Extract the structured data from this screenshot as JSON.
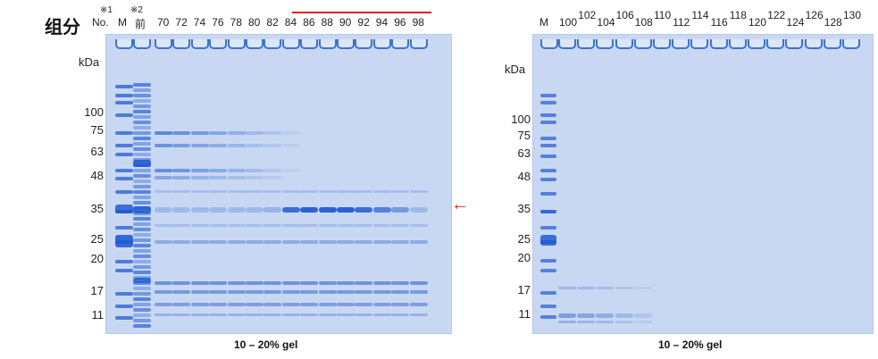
{
  "title": "组分",
  "notes": {
    "n1": "※1",
    "n2": "※2"
  },
  "left": {
    "no_label": "No.",
    "marker_label": "M",
    "pre_label": "前",
    "fractions": [
      "70",
      "72",
      "74",
      "76",
      "78",
      "80",
      "82",
      "84",
      "86",
      "88",
      "90",
      "92",
      "94",
      "96",
      "98"
    ],
    "kda_label": "kDa",
    "mw": [
      "100",
      "75",
      "63",
      "48",
      "35",
      "25",
      "20",
      "17",
      "11"
    ],
    "caption": "10 – 20% gel",
    "arrow": "←"
  },
  "right": {
    "marker_label": "M",
    "fractions": [
      "100",
      "102",
      "104",
      "106",
      "108",
      "110",
      "112",
      "114",
      "116",
      "118",
      "120",
      "122",
      "124",
      "126",
      "128",
      "130"
    ],
    "kda_label": "kDa",
    "mw": [
      "100",
      "75",
      "63",
      "48",
      "35",
      "25",
      "20",
      "17",
      "11"
    ],
    "caption": "10 – 20% gel"
  },
  "colors": {
    "gel": "#c9d8f2",
    "band": "#2f66d4",
    "highlight": "#e02020"
  }
}
